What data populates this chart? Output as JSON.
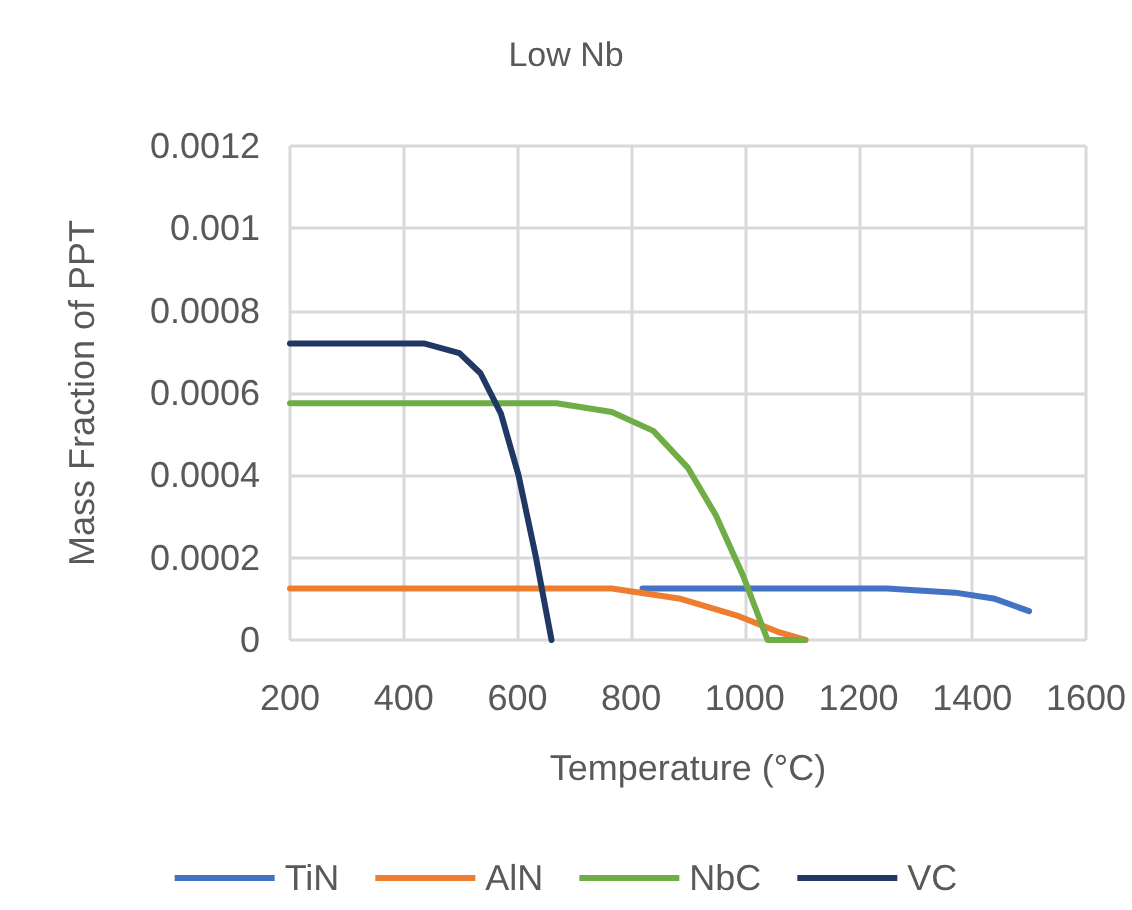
{
  "chart_data": {
    "type": "line",
    "title": "Low Nb",
    "xlabel": "Temperature (°C)",
    "ylabel": "Mass Fraction of PPT",
    "xlim": [
      200,
      1600
    ],
    "xticks": [
      200,
      400,
      600,
      800,
      1000,
      1200,
      1400,
      1600
    ],
    "ylim": [
      0,
      0.0012
    ],
    "yticks": [
      0,
      0.0002,
      0.0004,
      0.0006,
      0.0008,
      0.001,
      0.0012
    ],
    "grid": true,
    "legend": "bottom",
    "marker": "none",
    "line_style": "solid",
    "series": [
      {
        "name": "TiN",
        "color": "#4472c4",
        "x": [
          820,
          1000,
          1250,
          1370,
          1440,
          1500
        ],
        "values": [
          0.000125,
          0.000125,
          0.000125,
          0.000115,
          0.0001,
          7e-05
        ]
      },
      {
        "name": "AlN",
        "color": "#ed7d31",
        "x": [
          200,
          600,
          766,
          887,
          985,
          1058,
          1107
        ],
        "values": [
          0.000125,
          0.000125,
          0.000125,
          0.0001,
          6e-05,
          2e-05,
          0
        ]
      },
      {
        "name": "NbC",
        "color": "#70ad47",
        "x": [
          200,
          500,
          669,
          766,
          839,
          900,
          949,
          997,
          1040,
          1106
        ],
        "values": [
          0.000575,
          0.000575,
          0.000575,
          0.000554,
          0.000508,
          0.000418,
          0.000303,
          0.000156,
          0,
          0
        ]
      },
      {
        "name": "VC",
        "color": "#203864",
        "x": [
          200,
          437,
          498,
          535,
          571,
          602,
          632,
          660
        ],
        "values": [
          0.00072,
          0.00072,
          0.000697,
          0.000648,
          0.00055,
          0.0004,
          0.000205,
          0
        ]
      }
    ]
  }
}
